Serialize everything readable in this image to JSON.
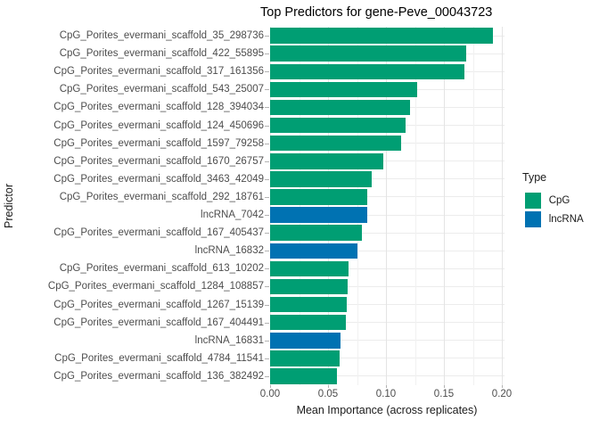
{
  "title": "Top Predictors for gene-Peve_00043723",
  "axes": {
    "x_label": "Mean Importance (across replicates)",
    "y_label": "Predictor",
    "x_tick_labels": [
      "0.00",
      "0.05",
      "0.10",
      "0.15",
      "0.20"
    ]
  },
  "legend": {
    "title": "Type",
    "items": [
      {
        "label": "CpG",
        "color": "#009E73"
      },
      {
        "label": "lncRNA",
        "color": "#0072B2"
      }
    ]
  },
  "chart_data": {
    "type": "bar",
    "orientation": "horizontal",
    "title": "Top Predictors for gene-Peve_00043723",
    "xlabel": "Mean Importance (across replicates)",
    "ylabel": "Predictor",
    "xlim": [
      0,
      0.2023
    ],
    "x_tick_values": [
      0,
      0.05,
      0.1,
      0.15,
      0.2
    ],
    "x_minor_tick_values": [
      0.025,
      0.075,
      0.125,
      0.175
    ],
    "grid": true,
    "legend_position": "right",
    "series_colors": {
      "CpG": "#009E73",
      "lncRNA": "#0072B2"
    },
    "rows": [
      {
        "label": "CpG_Porites_evermani_scaffold_35_298736",
        "type": "CpG",
        "value": 0.192
      },
      {
        "label": "CpG_Porites_evermani_scaffold_422_55895",
        "type": "CpG",
        "value": 0.169
      },
      {
        "label": "CpG_Porites_evermani_scaffold_317_161356",
        "type": "CpG",
        "value": 0.168
      },
      {
        "label": "CpG_Porites_evermani_scaffold_543_25007",
        "type": "CpG",
        "value": 0.127
      },
      {
        "label": "CpG_Porites_evermani_scaffold_128_394034",
        "type": "CpG",
        "value": 0.121
      },
      {
        "label": "CpG_Porites_evermani_scaffold_124_450696",
        "type": "CpG",
        "value": 0.117
      },
      {
        "label": "CpG_Porites_evermani_scaffold_1597_79258",
        "type": "CpG",
        "value": 0.113
      },
      {
        "label": "CpG_Porites_evermani_scaffold_1670_26757",
        "type": "CpG",
        "value": 0.098
      },
      {
        "label": "CpG_Porites_evermani_scaffold_3463_42049",
        "type": "CpG",
        "value": 0.088
      },
      {
        "label": "CpG_Porites_evermani_scaffold_292_18761",
        "type": "CpG",
        "value": 0.084
      },
      {
        "label": "lncRNA_7042",
        "type": "lncRNA",
        "value": 0.0835
      },
      {
        "label": "CpG_Porites_evermani_scaffold_167_405437",
        "type": "CpG",
        "value": 0.079
      },
      {
        "label": "lncRNA_16832",
        "type": "lncRNA",
        "value": 0.0755
      },
      {
        "label": "CpG_Porites_evermani_scaffold_613_10202",
        "type": "CpG",
        "value": 0.068
      },
      {
        "label": "CpG_Porites_evermani_scaffold_1284_108857",
        "type": "CpG",
        "value": 0.067
      },
      {
        "label": "CpG_Porites_evermani_scaffold_1267_15139",
        "type": "CpG",
        "value": 0.066
      },
      {
        "label": "CpG_Porites_evermani_scaffold_167_404491",
        "type": "CpG",
        "value": 0.065
      },
      {
        "label": "lncRNA_16831",
        "type": "lncRNA",
        "value": 0.061
      },
      {
        "label": "CpG_Porites_evermani_scaffold_4784_11541",
        "type": "CpG",
        "value": 0.0602
      },
      {
        "label": "CpG_Porites_evermani_scaffold_136_382492",
        "type": "CpG",
        "value": 0.058
      }
    ]
  }
}
